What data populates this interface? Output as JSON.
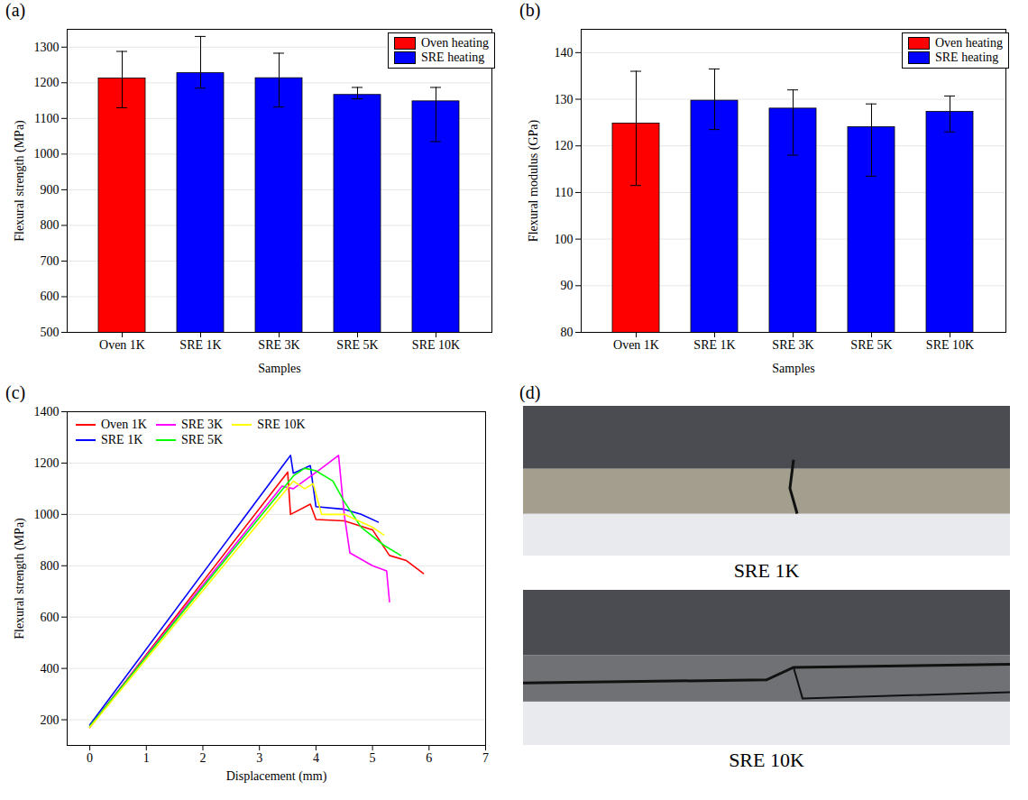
{
  "chart_data": [
    {
      "type": "bar",
      "title": "(a)",
      "categories": [
        "Oven 1K",
        "SRE 1K",
        "SRE 3K",
        "SRE 5K",
        "SRE 10K"
      ],
      "series": [
        {
          "name": "Oven heating",
          "color": "#ff0000",
          "values": [
            1212,
            null,
            null,
            null,
            null
          ]
        },
        {
          "name": "SRE heating",
          "color": "#0000ff",
          "values": [
            null,
            1227,
            1213,
            1166,
            1148
          ]
        }
      ],
      "error_minus": [
        82,
        42,
        81,
        11,
        113
      ],
      "error_plus": [
        76,
        103,
        70,
        21,
        39
      ],
      "x_label": "Samples",
      "y_label": "Flexural strength (MPa)",
      "ylim": [
        500,
        1350
      ],
      "yticks": [
        500,
        600,
        700,
        800,
        900,
        1000,
        1100,
        1200,
        1300
      ],
      "grid": true,
      "legend": "upper right"
    },
    {
      "type": "bar",
      "title": "(b)",
      "categories": [
        "Oven 1K",
        "SRE 1K",
        "SRE 3K",
        "SRE 5K",
        "SRE 10K"
      ],
      "series": [
        {
          "name": "Oven heating",
          "color": "#ff0000",
          "values": [
            124.8,
            null,
            null,
            null,
            null
          ]
        },
        {
          "name": "SRE heating",
          "color": "#0000ff",
          "values": [
            null,
            129.7,
            128,
            124,
            127.3
          ]
        }
      ],
      "error_minus": [
        13.3,
        6.2,
        10,
        10.5,
        4.3
      ],
      "error_plus": [
        11.2,
        6.8,
        4,
        5,
        3.4
      ],
      "x_label": "Samples",
      "y_label": "Flexural modulus (GPa)",
      "ylim": [
        80,
        145
      ],
      "yticks": [
        80,
        90,
        100,
        110,
        120,
        130,
        140
      ],
      "grid": true,
      "legend": "upper right"
    },
    {
      "type": "line",
      "title": "(c)",
      "x_label": "Displacement (mm)",
      "y_label": "Flexural strength (MPa)",
      "xlim": [
        -0.4,
        7
      ],
      "xticks": [
        0,
        1,
        2,
        3,
        4,
        5,
        6,
        7
      ],
      "ylim": [
        100,
        1400
      ],
      "yticks": [
        200,
        400,
        600,
        800,
        1000,
        1200,
        1400
      ],
      "grid": true,
      "legend": "upper left",
      "series": [
        {
          "name": "Oven 1K",
          "color": "#ff0000",
          "x": [
            0,
            3.5,
            3.55,
            3.9,
            4.0,
            4.5,
            5.0,
            5.3,
            5.6,
            5.9
          ],
          "values": [
            170,
            1165,
            1000,
            1040,
            980,
            975,
            940,
            840,
            820,
            770
          ]
        },
        {
          "name": "SRE 1K",
          "color": "#0000ff",
          "x": [
            0,
            3.55,
            3.6,
            3.9,
            4.0,
            4.5,
            4.8,
            5.1
          ],
          "values": [
            180,
            1230,
            1160,
            1190,
            1030,
            1020,
            1000,
            970
          ]
        },
        {
          "name": "SRE 3K",
          "color": "#ff00ff",
          "x": [
            0,
            3.4,
            3.6,
            4.1,
            4.4,
            4.5,
            4.6,
            5.0,
            5.25,
            5.3
          ],
          "values": [
            175,
            1110,
            1100,
            1180,
            1230,
            1000,
            850,
            800,
            780,
            660
          ]
        },
        {
          "name": "SRE 5K",
          "color": "#00ff00",
          "x": [
            0,
            3.6,
            3.8,
            4.0,
            4.3,
            4.5,
            4.8,
            5.2,
            5.5
          ],
          "values": [
            175,
            1150,
            1180,
            1170,
            1130,
            1050,
            950,
            880,
            840
          ]
        },
        {
          "name": "SRE 10K",
          "color": "#ffff00",
          "x": [
            0,
            3.6,
            3.8,
            3.95,
            4.1,
            4.5,
            5.0,
            5.2
          ],
          "values": [
            170,
            1130,
            1100,
            1120,
            1000,
            1000,
            950,
            920
          ]
        }
      ]
    },
    {
      "type": "image",
      "title": "(d)",
      "captions": [
        "SRE 1K",
        "SRE 10K"
      ]
    }
  ]
}
